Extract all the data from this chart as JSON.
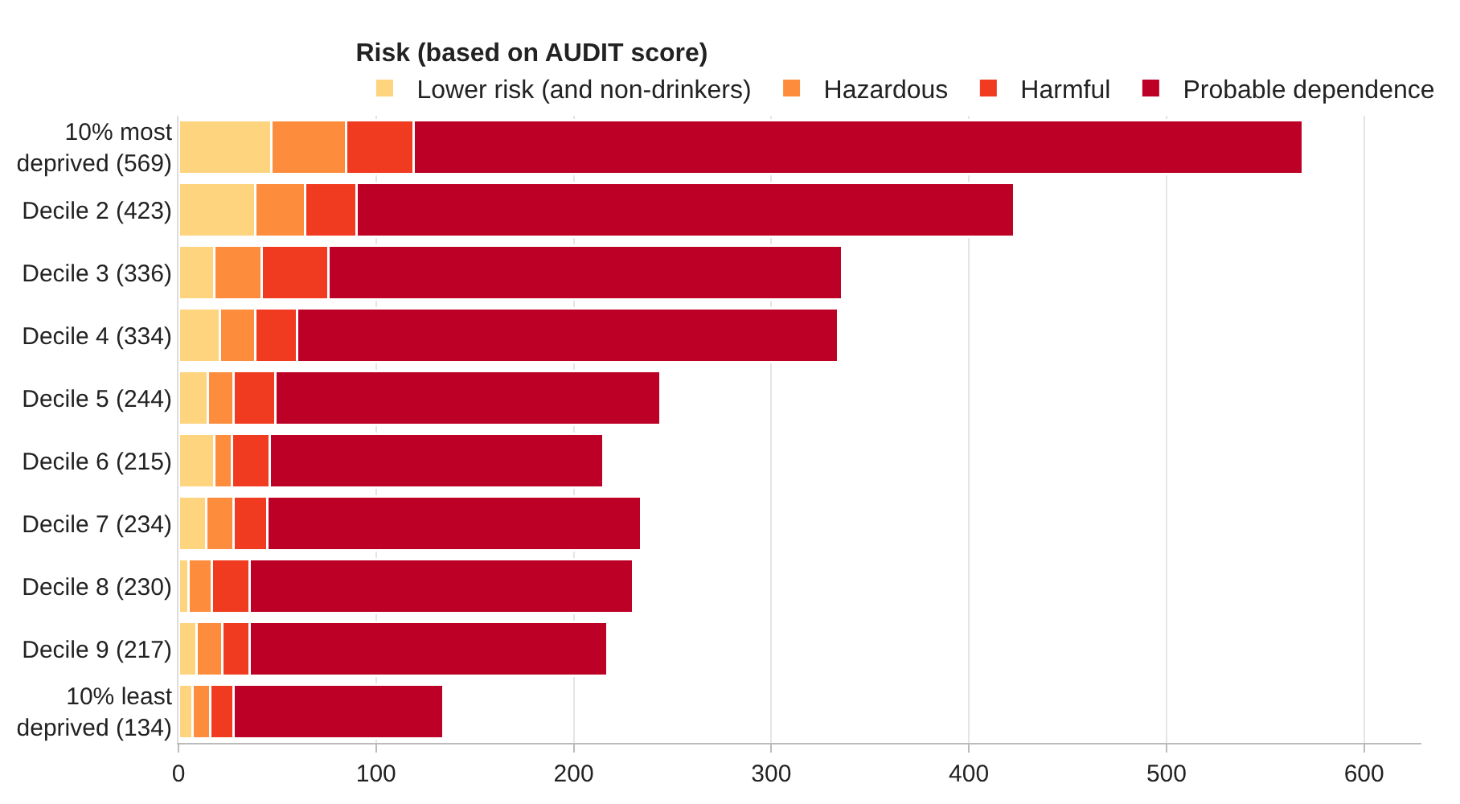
{
  "chart_data": {
    "type": "bar",
    "orientation": "horizontal",
    "stacked": true,
    "legend_title": "Risk (based on AUDIT score)",
    "legend": "top",
    "categories": [
      "10% most\ndeprived (569)",
      "Decile 2 (423)",
      "Decile 3 (336)",
      "Decile 4 (334)",
      "Decile 5 (244)",
      "Decile 6 (215)",
      "Decile 7 (234)",
      "Decile 8 (230)",
      "Decile 9 (217)",
      "10% least\ndeprived (134)"
    ],
    "series": [
      {
        "name": "Lower risk (and non-drinkers)",
        "color": "#fed47f",
        "values": [
          47,
          39,
          18,
          21,
          15,
          18,
          14,
          5,
          9,
          7
        ]
      },
      {
        "name": "Hazardous",
        "color": "#fd8d3c",
        "values": [
          38,
          25,
          24,
          18,
          13,
          9,
          14,
          12,
          13,
          9
        ]
      },
      {
        "name": "Harmful",
        "color": "#f03b20",
        "values": [
          34,
          26,
          34,
          21,
          21,
          19,
          17,
          19,
          14,
          12
        ]
      },
      {
        "name": "Probable dependence",
        "color": "#bd0026",
        "values": [
          450,
          333,
          260,
          274,
          195,
          169,
          189,
          194,
          181,
          106
        ]
      }
    ],
    "xlim": [
      0,
      629
    ],
    "xticks": [
      0,
      100,
      200,
      300,
      400,
      500,
      600
    ],
    "grid": "x"
  }
}
